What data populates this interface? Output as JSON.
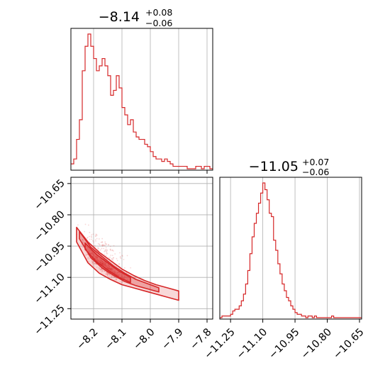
{
  "chart_data": [
    {
      "type": "histogram",
      "panel": "marginal-param-1",
      "title": {
        "median": "−8.14",
        "upper": "+0.08",
        "lower": "−0.06"
      },
      "xlim": [
        -8.28,
        -7.78
      ],
      "xticks": [
        -8.2,
        -8.1,
        -8.0,
        -7.9,
        -7.8
      ],
      "grid": true,
      "color": "#d62728",
      "bin_width": 0.01,
      "bins_start": -8.28,
      "counts": [
        2,
        4,
        12,
        20,
        40,
        50,
        55,
        50,
        45,
        40,
        42,
        45,
        42,
        38,
        30,
        32,
        38,
        33,
        25,
        22,
        18,
        20,
        15,
        13,
        12,
        12,
        10,
        9,
        7,
        5,
        4,
        4,
        3,
        4,
        3,
        2,
        1,
        1,
        1,
        1,
        1,
        0,
        0,
        0,
        1,
        1,
        0,
        1,
        1,
        0
      ]
    },
    {
      "type": "histogram",
      "panel": "marginal-param-2",
      "title": {
        "median": "−11.05",
        "upper": "+0.07",
        "lower": "−0.06"
      },
      "xlim": [
        -11.3,
        -10.64
      ],
      "xticks": [
        -11.25,
        -11.1,
        -10.95,
        -10.8,
        -10.65
      ],
      "xtick_labels": [
        "−11.25",
        "−11.10",
        "−10.95",
        "−10.80",
        "−10.65"
      ],
      "grid": true,
      "color": "#d62728",
      "bin_width": 0.01,
      "bins_start": -11.3,
      "counts": [
        0,
        1,
        1,
        1,
        1,
        2,
        4,
        5,
        5,
        7,
        10,
        14,
        20,
        28,
        38,
        48,
        56,
        62,
        68,
        74,
        80,
        76,
        70,
        62,
        60,
        46,
        40,
        32,
        26,
        20,
        16,
        12,
        10,
        7,
        5,
        3,
        2,
        2,
        1,
        1,
        0,
        1,
        1,
        0,
        1,
        0,
        0,
        0,
        0,
        0,
        0,
        0,
        1,
        0,
        0,
        0,
        0,
        0,
        0,
        0,
        0,
        0,
        0,
        0,
        0,
        0
      ]
    },
    {
      "type": "scatter",
      "panel": "joint-2d-contour",
      "xlim": [
        -8.28,
        -7.78
      ],
      "ylim": [
        -11.3,
        -10.62
      ],
      "xticks": [
        -8.2,
        -8.1,
        -8.0,
        -7.9,
        -7.8
      ],
      "yticks": [
        -10.65,
        -10.8,
        -10.95,
        -11.1,
        -11.25
      ],
      "ytick_labels": [
        "−10.65",
        "−10.80",
        "−10.95",
        "−11.10",
        "−11.25"
      ],
      "grid": true,
      "color": "#d62728",
      "density_ridge": {
        "x": [
          -8.26,
          -8.22,
          -8.18,
          -8.14,
          -8.1,
          -8.06,
          -8.02,
          -7.98,
          -7.94,
          -7.9
        ],
        "y": [
          -10.89,
          -10.98,
          -11.03,
          -11.07,
          -11.1,
          -11.125,
          -11.145,
          -11.16,
          -11.175,
          -11.19
        ]
      },
      "contour_levels": [
        {
          "upper": [
            [
              -8.26,
              -10.86
            ],
            [
              -8.22,
              -10.93
            ],
            [
              -8.18,
              -10.98
            ],
            [
              -8.14,
              -11.02
            ],
            [
              -8.1,
              -11.06
            ],
            [
              -8.06,
              -11.09
            ],
            [
              -8.02,
              -11.115
            ],
            [
              -7.98,
              -11.135
            ],
            [
              -7.94,
              -11.15
            ],
            [
              -7.9,
              -11.165
            ]
          ],
          "lower": [
            [
              -7.9,
              -11.21
            ],
            [
              -7.94,
              -11.195
            ],
            [
              -7.98,
              -11.18
            ],
            [
              -8.02,
              -11.165
            ],
            [
              -8.06,
              -11.15
            ],
            [
              -8.1,
              -11.135
            ],
            [
              -8.14,
              -11.11
            ],
            [
              -8.18,
              -11.08
            ],
            [
              -8.22,
              -11.03
            ],
            [
              -8.26,
              -10.93
            ]
          ]
        },
        {
          "upper": [
            [
              -8.25,
              -10.88
            ],
            [
              -8.21,
              -10.955
            ],
            [
              -8.17,
              -11.0
            ],
            [
              -8.13,
              -11.045
            ],
            [
              -8.09,
              -11.08
            ],
            [
              -8.05,
              -11.11
            ],
            [
              -8.01,
              -11.13
            ],
            [
              -7.97,
              -11.15
            ]
          ],
          "lower": [
            [
              -7.97,
              -11.17
            ],
            [
              -8.01,
              -11.155
            ],
            [
              -8.05,
              -11.14
            ],
            [
              -8.09,
              -11.12
            ],
            [
              -8.13,
              -11.09
            ],
            [
              -8.17,
              -11.055
            ],
            [
              -8.21,
              -11.005
            ],
            [
              -8.25,
              -10.915
            ]
          ]
        },
        {
          "upper": [
            [
              -8.23,
              -10.935
            ],
            [
              -8.19,
              -10.99
            ],
            [
              -8.15,
              -11.03
            ],
            [
              -8.11,
              -11.07
            ],
            [
              -8.07,
              -11.1
            ]
          ],
          "lower": [
            [
              -8.07,
              -11.125
            ],
            [
              -8.11,
              -11.1
            ],
            [
              -8.15,
              -11.065
            ],
            [
              -8.19,
              -11.025
            ],
            [
              -8.23,
              -10.965
            ]
          ]
        }
      ]
    }
  ]
}
